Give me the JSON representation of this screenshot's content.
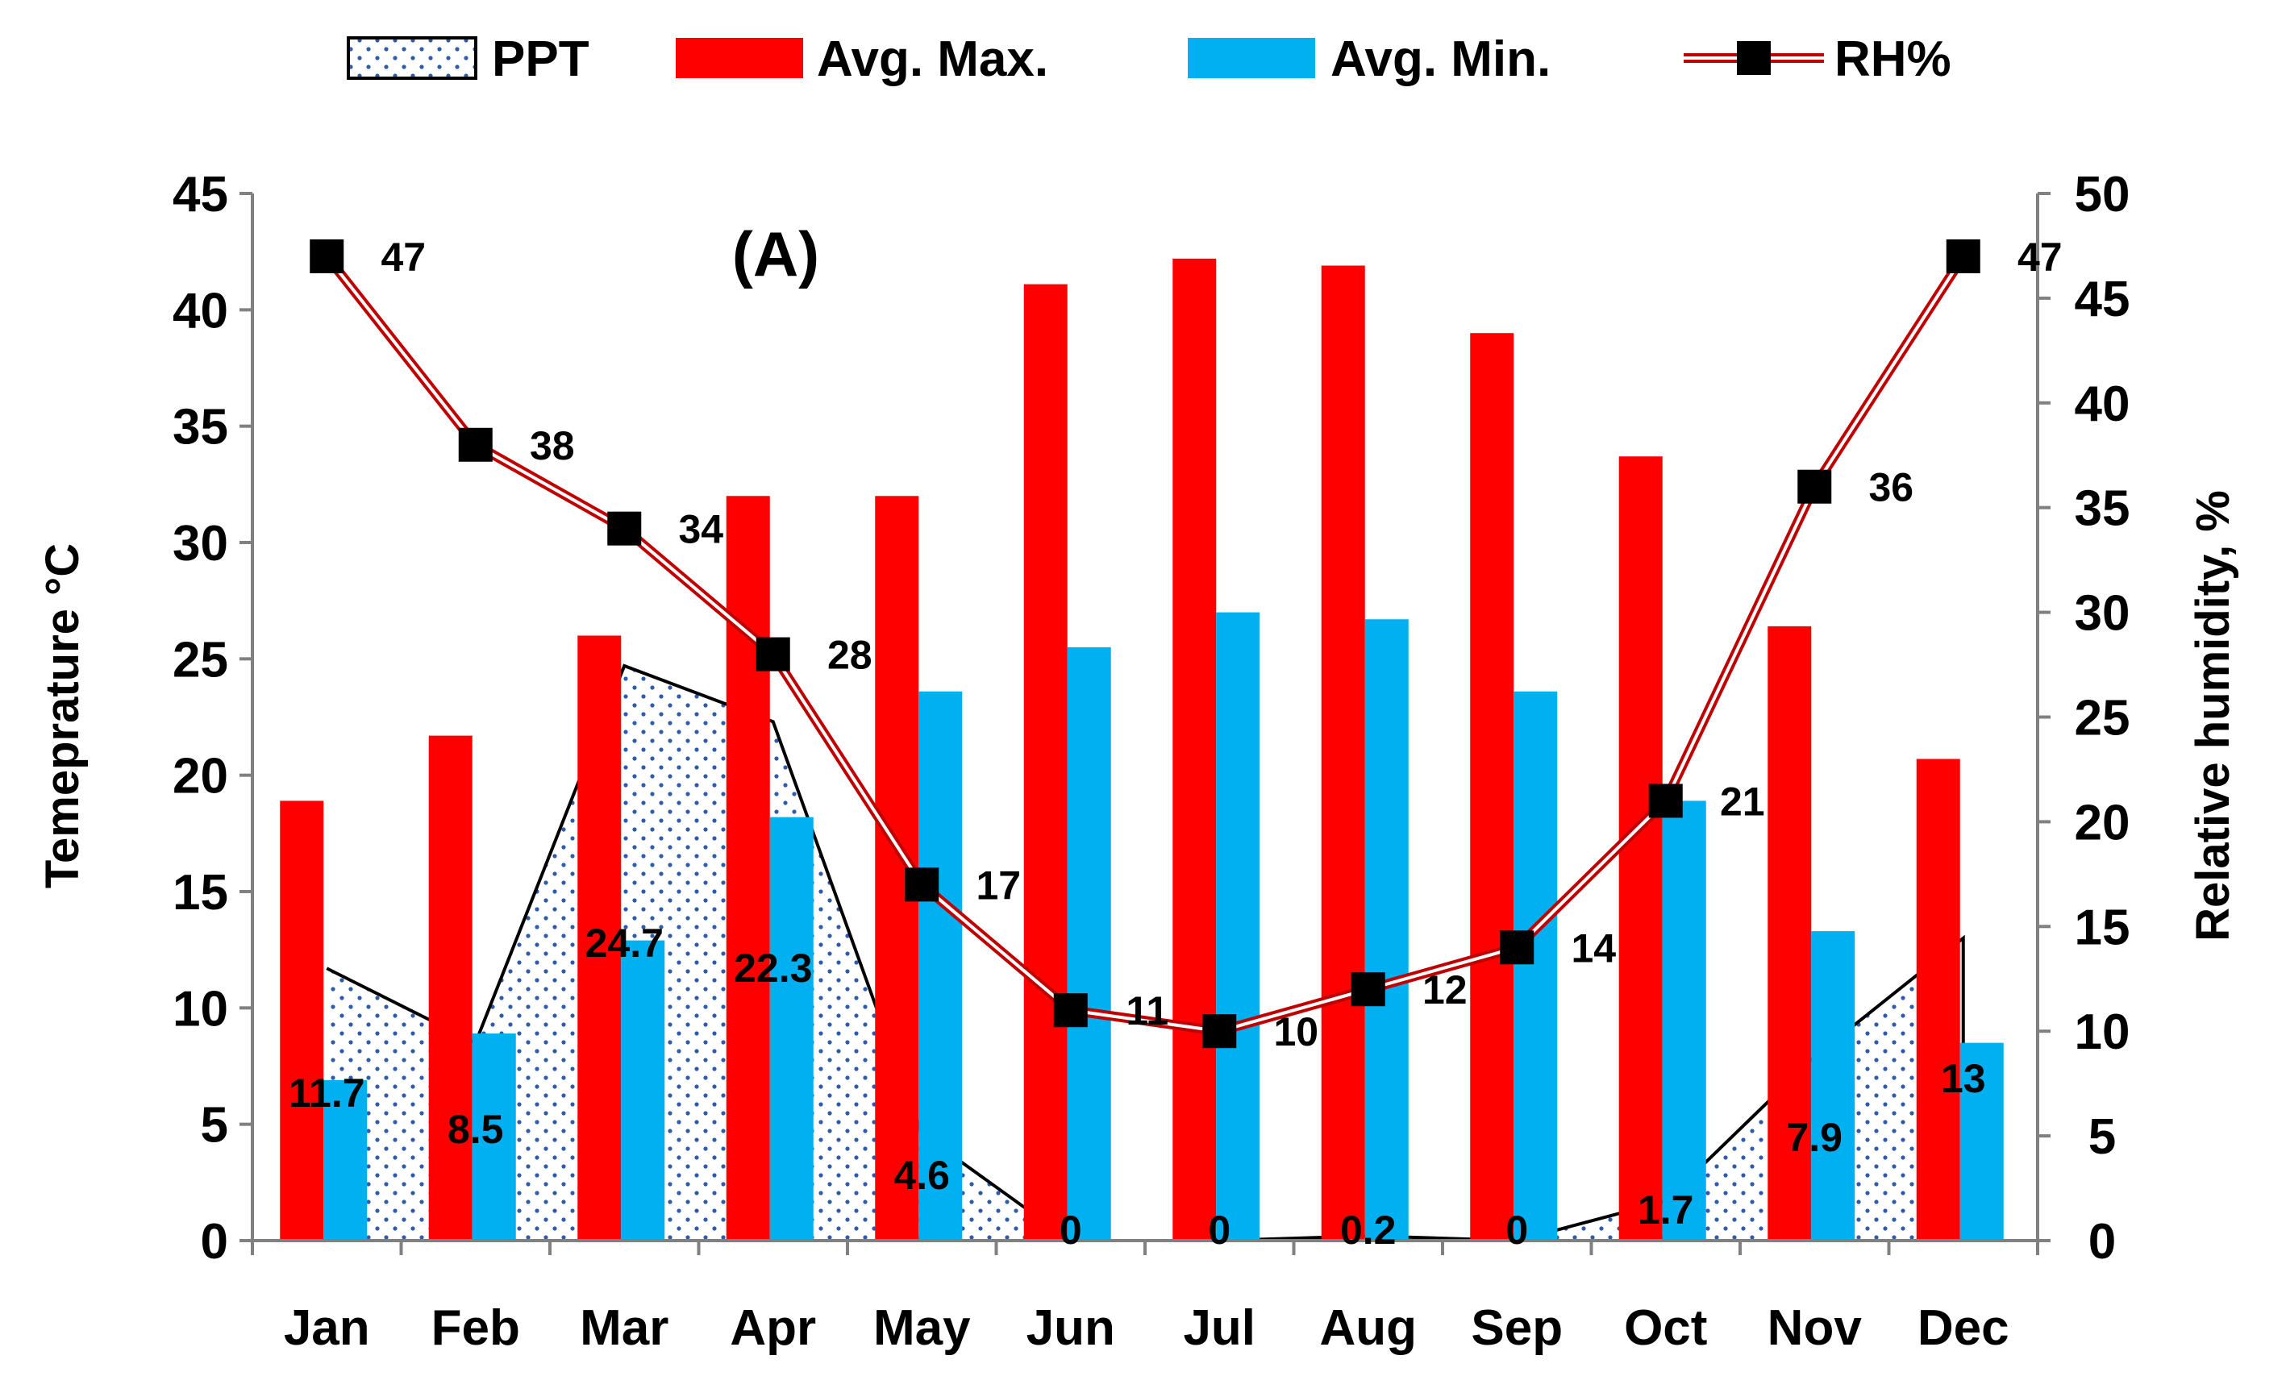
{
  "chart_data": {
    "type": "bar",
    "panel_label": "(A)",
    "categories": [
      "Jan",
      "Feb",
      "Mar",
      "Apr",
      "May",
      "Jun",
      "Jul",
      "Aug",
      "Sep",
      "Oct",
      "Nov",
      "Dec"
    ],
    "series": [
      {
        "name": "PPT",
        "type": "area",
        "axis": "left",
        "values": [
          11.7,
          8.5,
          24.7,
          22.3,
          4.6,
          0,
          0,
          0.2,
          0,
          1.7,
          7.9,
          13
        ],
        "labels": [
          "11.7",
          "8.5",
          "24.7",
          "22.3",
          "4.6",
          "0",
          "0",
          "0.2",
          "0",
          "1.7",
          "7.9",
          "13"
        ],
        "fill": "dotted-blue",
        "stroke": "#000000"
      },
      {
        "name": "Avg. Max.",
        "type": "bar",
        "axis": "left",
        "color": "#ff0000",
        "values": [
          18.9,
          21.7,
          26.0,
          32.0,
          32.0,
          41.1,
          42.2,
          41.9,
          39.0,
          33.7,
          26.4,
          20.7
        ]
      },
      {
        "name": "Avg. Min.",
        "type": "bar",
        "axis": "left",
        "color": "#00b0f0",
        "values": [
          6.9,
          8.9,
          12.9,
          18.2,
          23.6,
          25.5,
          27.0,
          26.7,
          23.6,
          18.9,
          13.3,
          8.5
        ]
      },
      {
        "name": "RH%",
        "type": "line",
        "axis": "right",
        "color": "#c00000",
        "marker": "square",
        "values": [
          47,
          38,
          34,
          28,
          17,
          11,
          10,
          12,
          14,
          21,
          36,
          47
        ],
        "labels": [
          "47",
          "38",
          "34",
          "28",
          "17",
          "11",
          "10",
          "12",
          "14",
          "21",
          "36",
          "47"
        ]
      }
    ],
    "y_left": {
      "label": "Temeprature °C",
      "ylim": [
        0,
        45
      ],
      "ticks": [
        "0",
        "5",
        "10",
        "15",
        "20",
        "25",
        "30",
        "35",
        "40",
        "45"
      ]
    },
    "y_right": {
      "label": "Relative humidity, %",
      "ylim": [
        0,
        50
      ],
      "ticks": [
        "0",
        "5",
        "10",
        "15",
        "20",
        "25",
        "30",
        "35",
        "40",
        "45",
        "50"
      ]
    },
    "legend": {
      "position": "top",
      "entries": [
        "PPT",
        "Avg. Max.",
        "Avg. Min.",
        "RH%"
      ]
    },
    "colors": {
      "max_bar": "#ff0000",
      "min_bar": "#00b0f0",
      "rh_line": "#c00000",
      "ppt_dots": "#2e5ca8",
      "axis": "#808080"
    },
    "grid": false
  }
}
